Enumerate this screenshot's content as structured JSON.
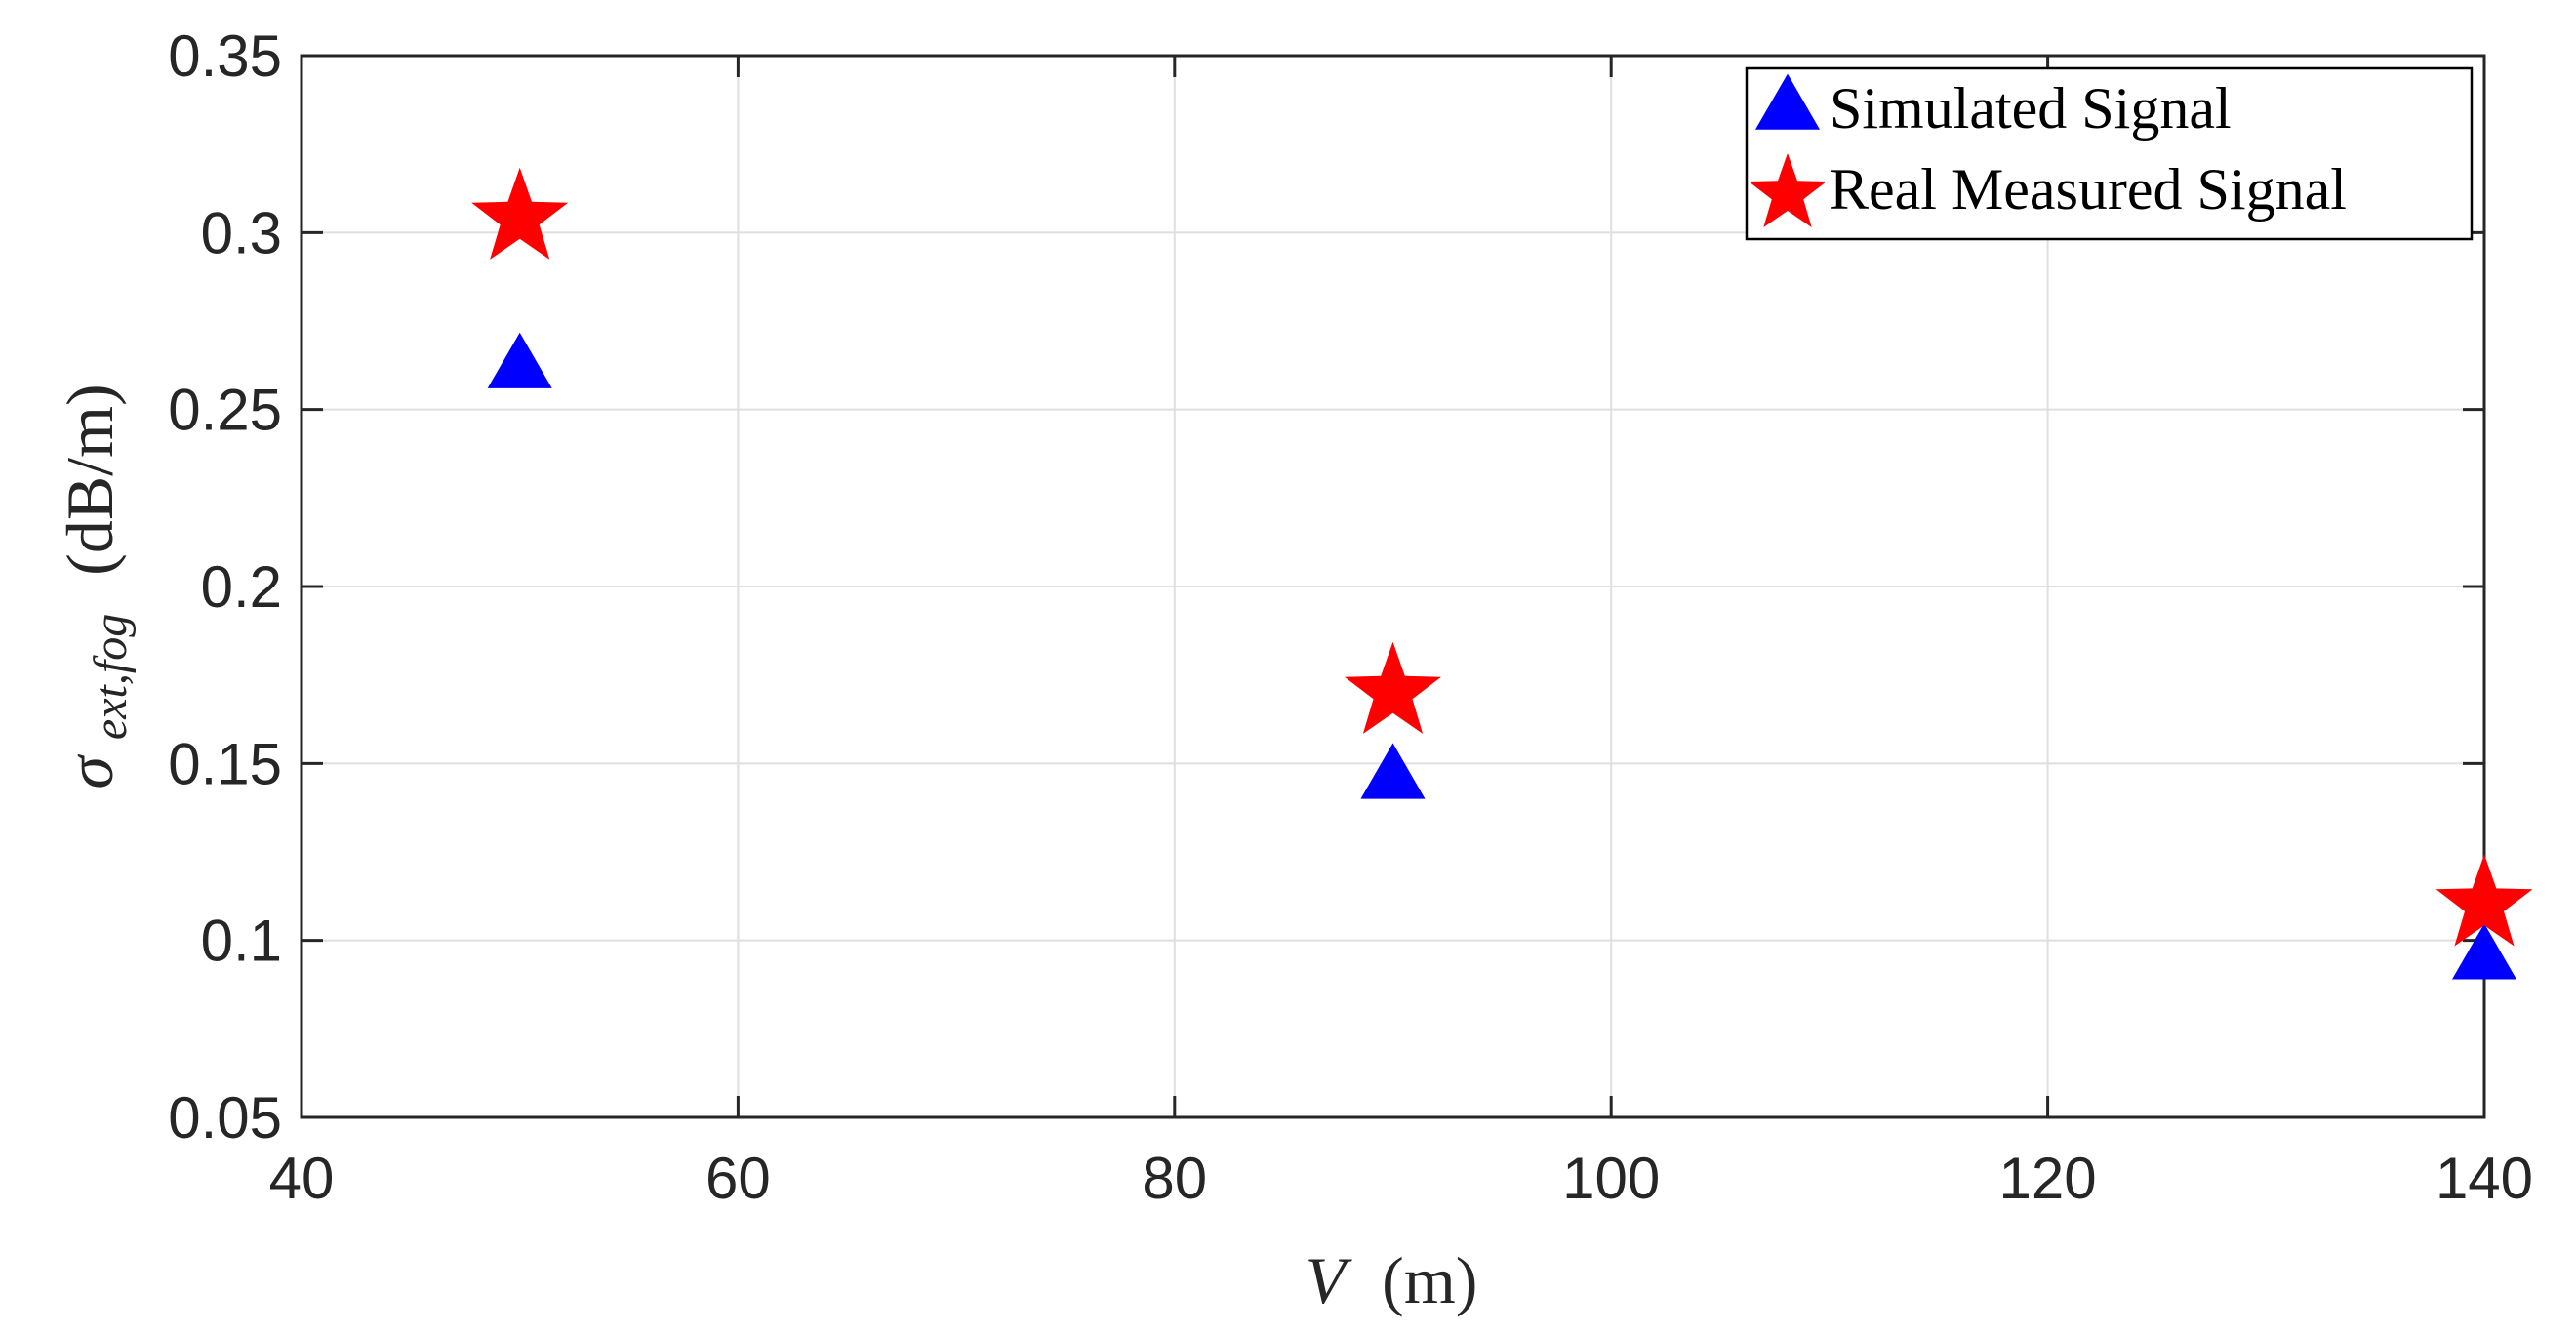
{
  "chart_data": {
    "type": "scatter",
    "xlabel": {
      "var": "V",
      "unit": "(m)"
    },
    "ylabel": {
      "sym": "σ",
      "sub": "ext,fog",
      "unit": "(dB/m)"
    },
    "xlim": [
      40,
      140
    ],
    "ylim": [
      0.05,
      0.35
    ],
    "xticks": [
      "40",
      "60",
      "80",
      "100",
      "120",
      "140"
    ],
    "yticks": [
      "0.05",
      "0.1",
      "0.15",
      "0.2",
      "0.25",
      "0.3",
      "0.35"
    ],
    "grid": true,
    "legend_position": "top-right",
    "series": [
      {
        "name": "Simulated Signal",
        "marker": "triangle",
        "color": "#0000ff",
        "x": [
          50,
          90,
          140
        ],
        "y": [
          0.262,
          0.146,
          0.095
        ]
      },
      {
        "name": "Real Measured Signal",
        "marker": "star",
        "color": "#ff0000",
        "x": [
          50,
          90,
          140
        ],
        "y": [
          0.304,
          0.17,
          0.11
        ]
      }
    ]
  }
}
